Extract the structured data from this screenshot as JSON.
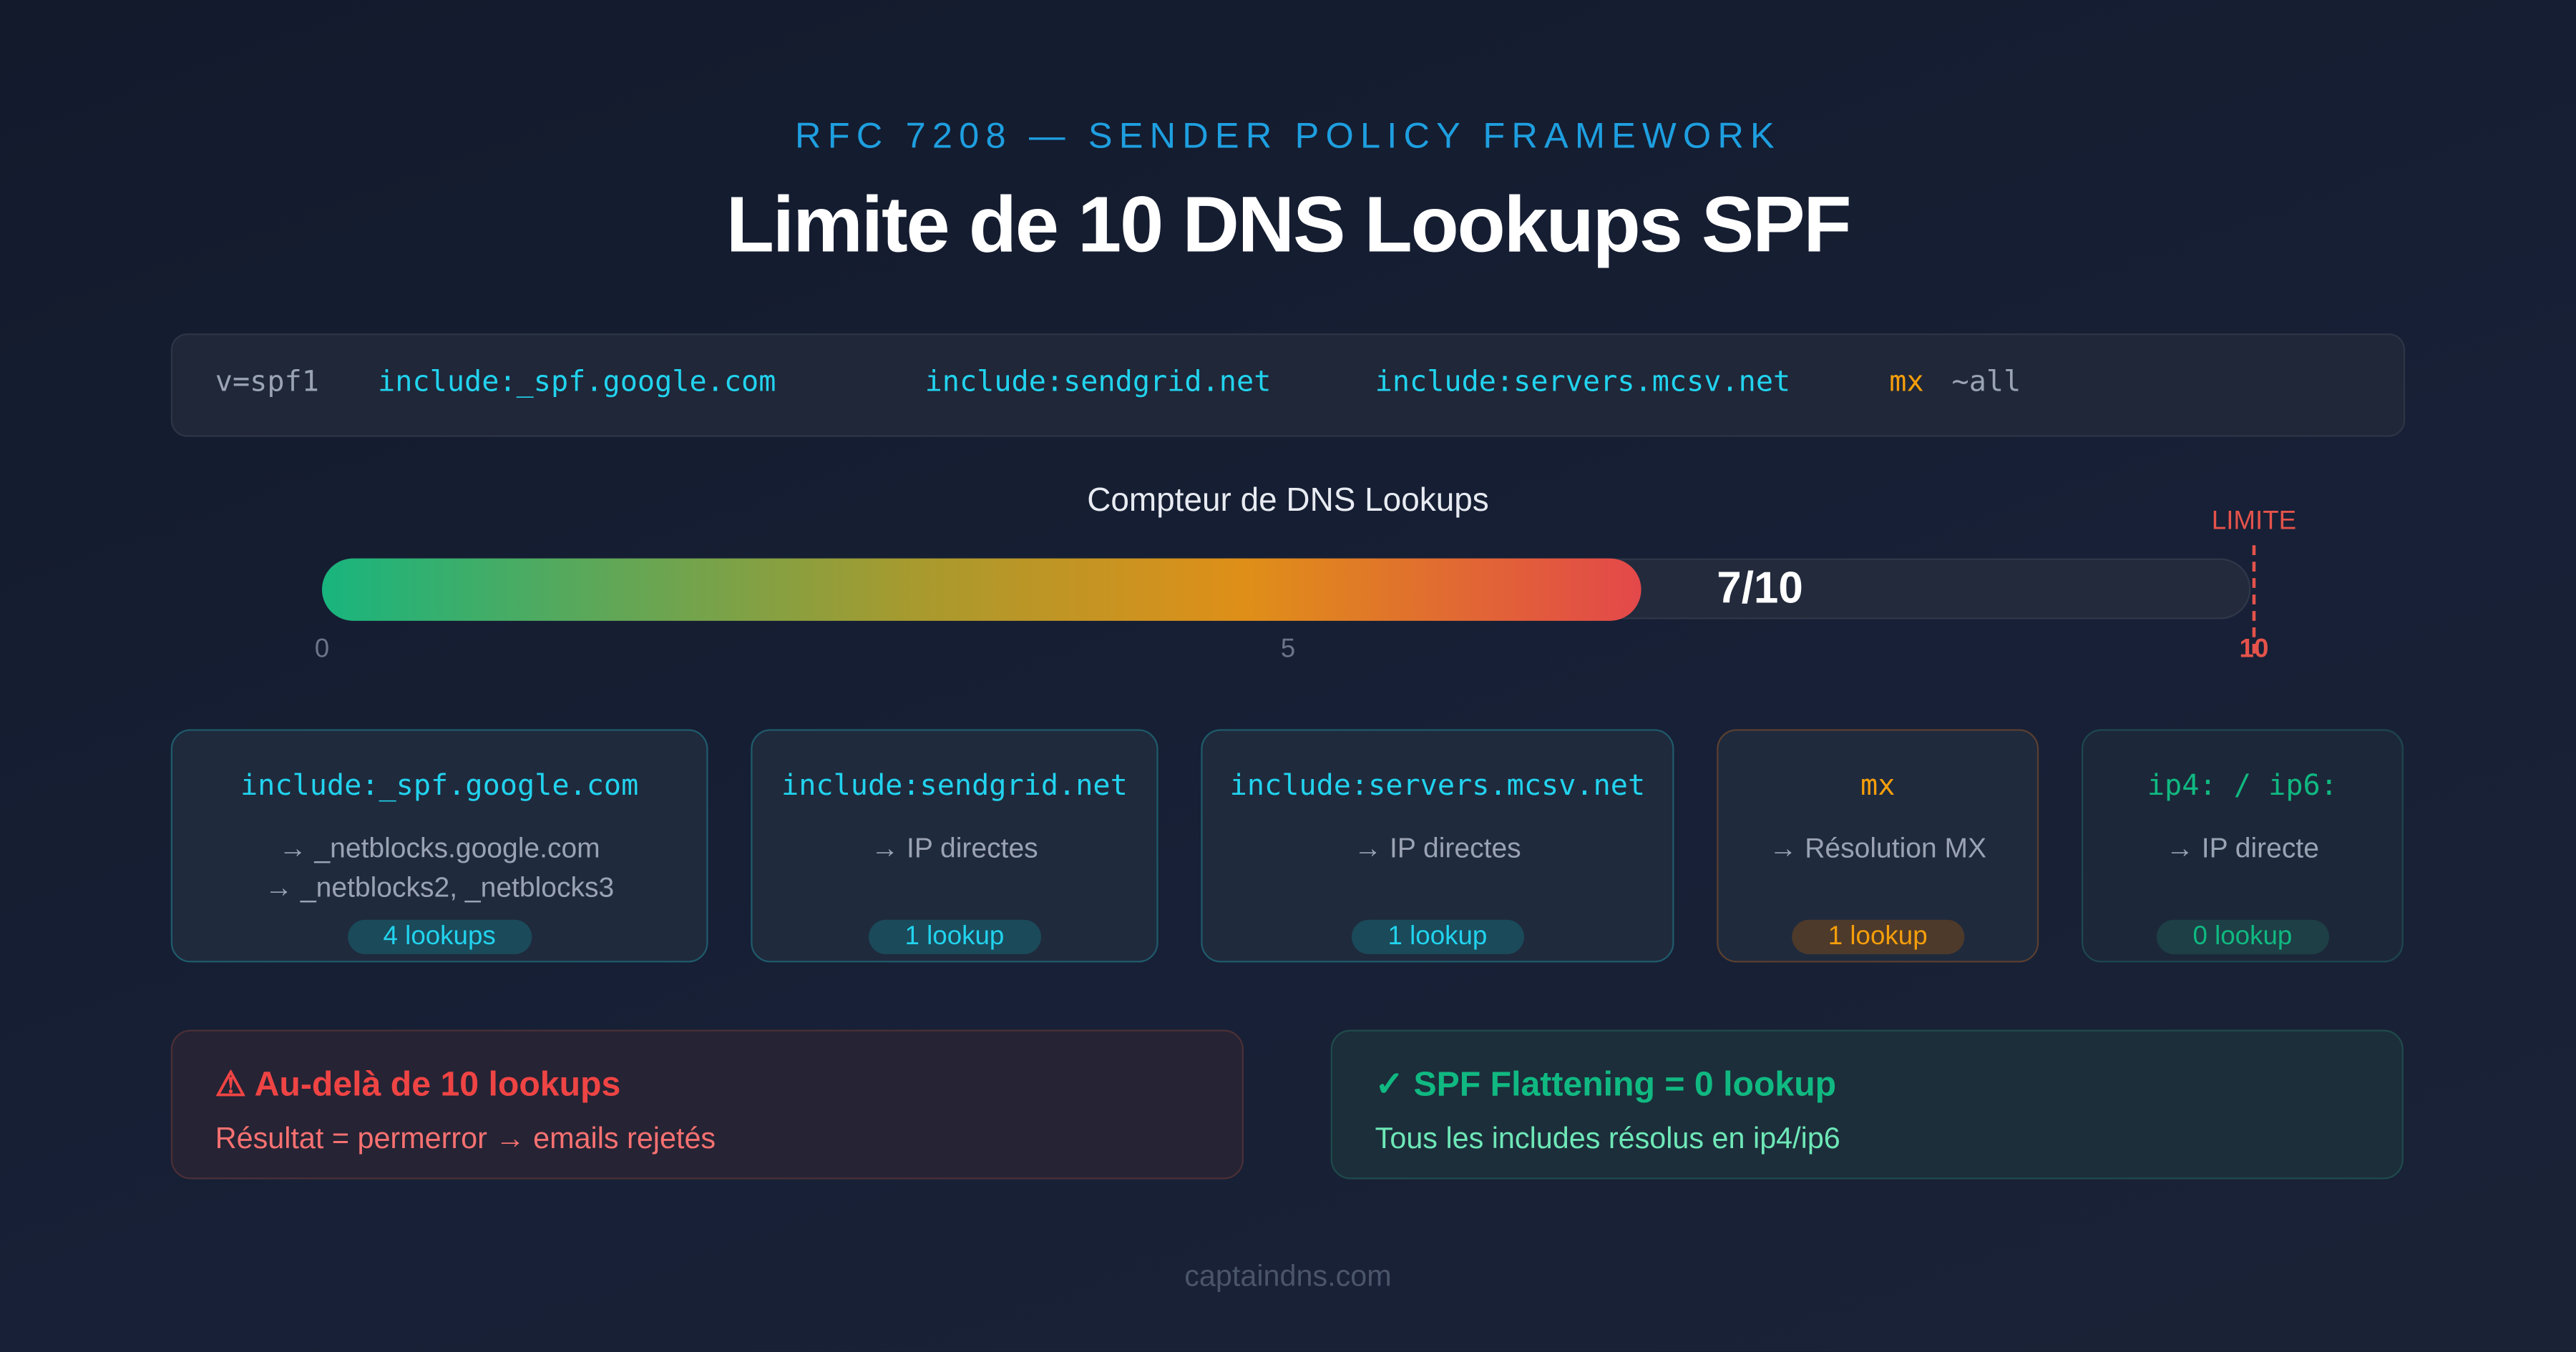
{
  "header": {
    "subtitle": "RFC 7208 — SENDER POLICY FRAMEWORK",
    "title": "Limite de 10 DNS Lookups SPF"
  },
  "spf_record": {
    "tokens": [
      "v=spf1",
      "include:_spf.google.com",
      "include:sendgrid.net",
      "include:servers.mcsv.net",
      "mx",
      "~all"
    ]
  },
  "counter": {
    "title": "Compteur de DNS Lookups",
    "value": 7,
    "max": 10,
    "label": "7/10",
    "limit_label": "LIMITE",
    "ticks": [
      "0",
      "5",
      "10"
    ]
  },
  "cards": [
    {
      "title": "include:_spf.google.com",
      "lines": [
        "→ _netblocks.google.com",
        "→ _netblocks2, _netblocks3"
      ],
      "badge": "4 lookups"
    },
    {
      "title": "include:sendgrid.net",
      "lines": [
        "→ IP directes"
      ],
      "badge": "1 lookup"
    },
    {
      "title": "include:servers.mcsv.net",
      "lines": [
        "→ IP directes"
      ],
      "badge": "1 lookup"
    },
    {
      "title": "mx",
      "lines": [
        "→ Résolution MX"
      ],
      "badge": "1 lookup"
    },
    {
      "title": "ip4: / ip6:",
      "lines": [
        "→ IP directe"
      ],
      "badge": "0 lookup"
    }
  ],
  "alerts": {
    "error": {
      "title": "⚠ Au-delà de 10 lookups",
      "text": "Résultat = permerror → emails rejetés"
    },
    "success": {
      "title": "✓ SPF Flattening = 0 lookup",
      "text": "Tous les includes résolus en ip4/ip6"
    }
  },
  "footer": "captaindns.com",
  "colors": {
    "cyan": "#22d3ee",
    "orange": "#f59e0b",
    "green": "#10b981",
    "red": "#ef4444"
  }
}
